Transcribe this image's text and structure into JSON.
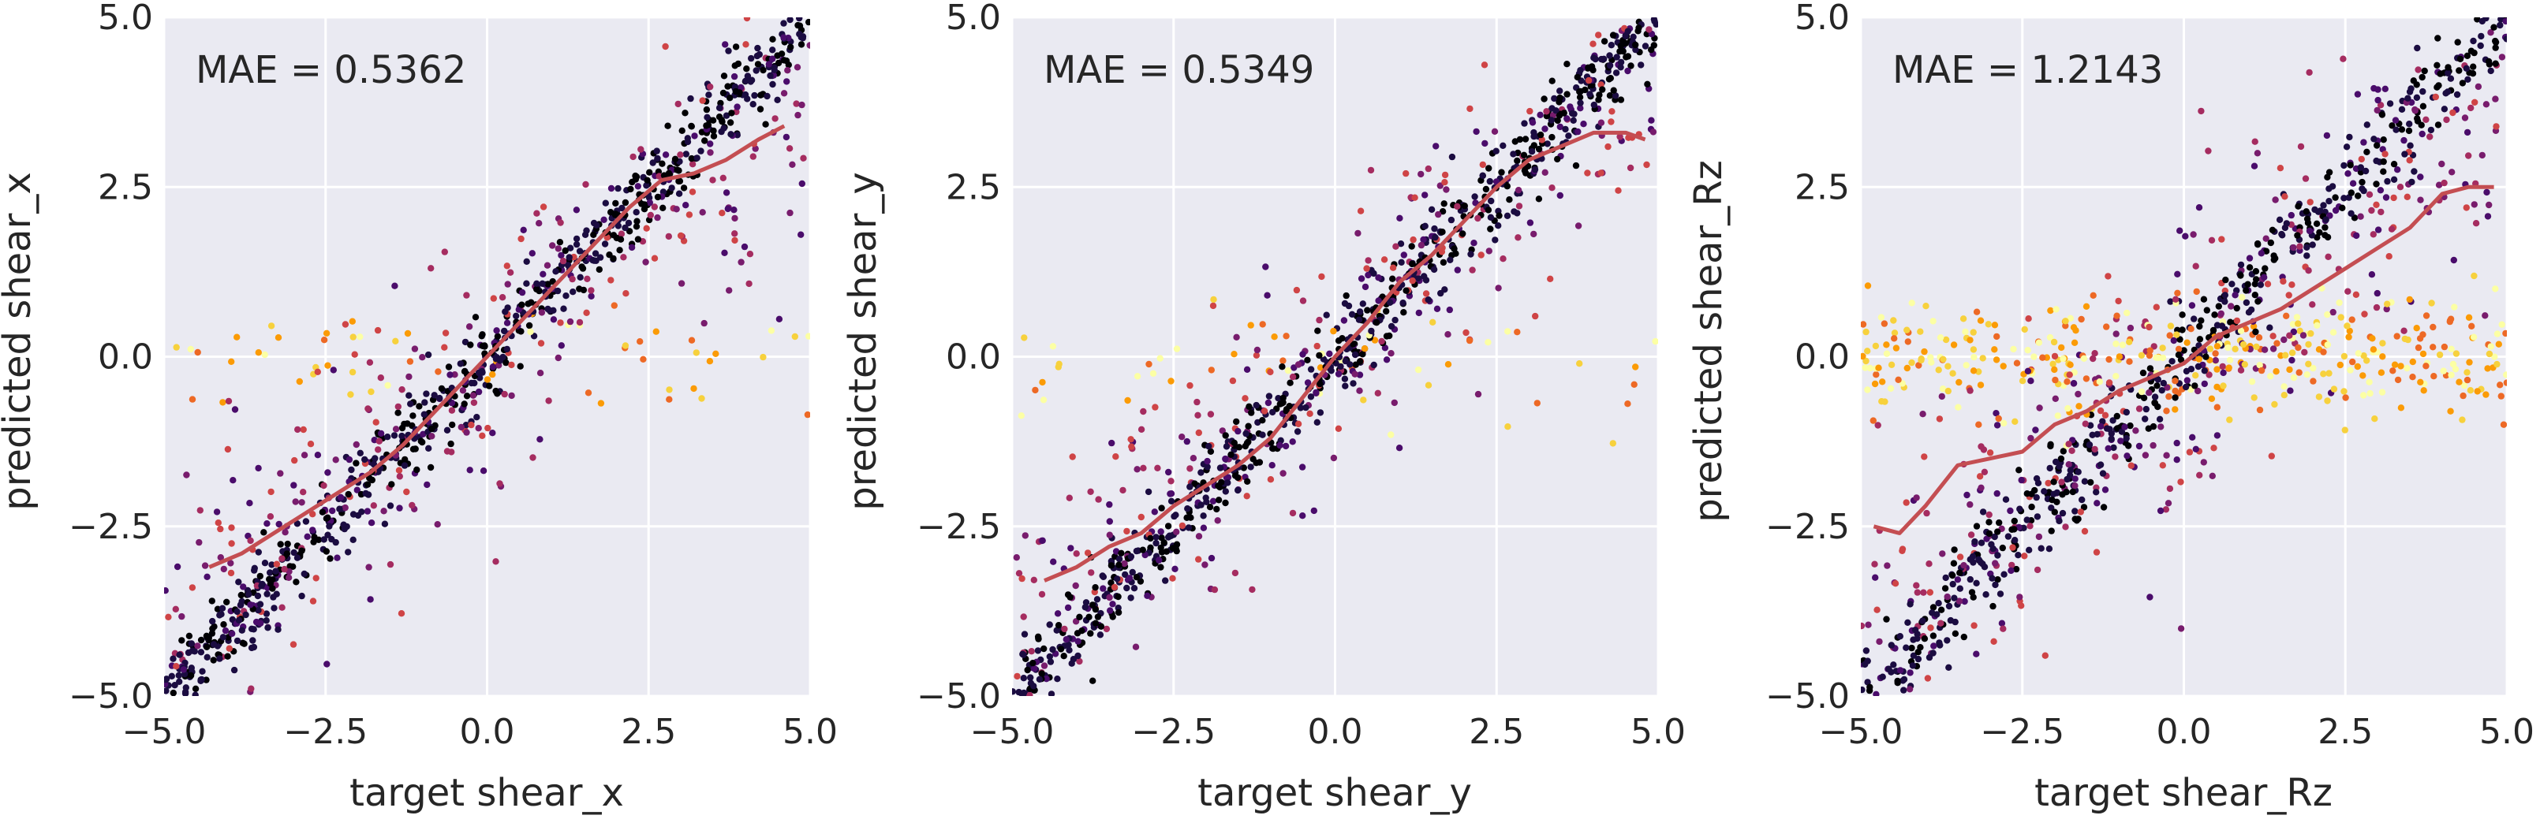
{
  "chart_data": [
    {
      "type": "scatter",
      "xlabel": "target shear_x",
      "ylabel": "predicted shear_x",
      "xlim": [
        -5.0,
        5.0
      ],
      "ylim": [
        -5.0,
        5.0
      ],
      "xticks": [
        "−5.0",
        "−2.5",
        "0.0",
        "2.5",
        "5.0"
      ],
      "yticks": [
        "−5.0",
        "−2.5",
        "0.0",
        "2.5",
        "5.0"
      ],
      "annotation": "MAE = 0.5362",
      "grid": true,
      "colormap": "inferno",
      "background": "#eaeaf2",
      "trend_color": "#c44e52",
      "scatter_model": {
        "n": 1100,
        "slope": 1.0,
        "core_noise": 0.3,
        "spread_noise": 1.0,
        "flat_fraction": 0.06,
        "seed": 11
      },
      "trend_line": {
        "x": [
          -4.3,
          -3.8,
          -3.3,
          -2.8,
          -2.3,
          -1.8,
          -1.3,
          -0.8,
          -0.3,
          0.2,
          0.7,
          1.2,
          1.7,
          2.2,
          2.7,
          3.2,
          3.7,
          4.2,
          4.6
        ],
        "y": [
          -3.1,
          -2.9,
          -2.6,
          -2.3,
          -2.0,
          -1.7,
          -1.3,
          -0.8,
          -0.3,
          0.2,
          0.7,
          1.2,
          1.7,
          2.2,
          2.6,
          2.7,
          2.9,
          3.2,
          3.4
        ]
      }
    },
    {
      "type": "scatter",
      "xlabel": "target shear_y",
      "ylabel": "predicted shear_y",
      "xlim": [
        -5.0,
        5.0
      ],
      "ylim": [
        -5.0,
        5.0
      ],
      "xticks": [
        "−5.0",
        "−2.5",
        "0.0",
        "2.5",
        "5.0"
      ],
      "yticks": [
        "−5.0",
        "−2.5",
        "0.0",
        "2.5",
        "5.0"
      ],
      "annotation": "MAE = 0.5349",
      "grid": true,
      "colormap": "inferno",
      "background": "#eaeaf2",
      "trend_color": "#c44e52",
      "scatter_model": {
        "n": 1100,
        "slope": 1.0,
        "core_noise": 0.3,
        "spread_noise": 0.9,
        "flat_fraction": 0.05,
        "seed": 23
      },
      "trend_line": {
        "x": [
          -4.5,
          -4.0,
          -3.5,
          -3.0,
          -2.5,
          -2.0,
          -1.5,
          -1.0,
          -0.5,
          0.0,
          0.5,
          1.0,
          1.5,
          2.0,
          2.5,
          3.0,
          3.5,
          4.0,
          4.5,
          4.8
        ],
        "y": [
          -3.3,
          -3.1,
          -2.8,
          -2.6,
          -2.2,
          -1.9,
          -1.6,
          -1.2,
          -0.6,
          0.0,
          0.5,
          1.1,
          1.5,
          2.0,
          2.5,
          2.9,
          3.1,
          3.3,
          3.3,
          3.2
        ]
      }
    },
    {
      "type": "scatter",
      "xlabel": "target shear_Rz",
      "ylabel": "predicted shear_Rz",
      "xlim": [
        -5.0,
        5.0
      ],
      "ylim": [
        -5.0,
        5.0
      ],
      "xticks": [
        "−5.0",
        "−2.5",
        "0.0",
        "2.5",
        "5.0"
      ],
      "yticks": [
        "−5.0",
        "−2.5",
        "0.0",
        "2.5",
        "5.0"
      ],
      "annotation": "MAE = 1.2143",
      "grid": true,
      "colormap": "inferno",
      "background": "#eaeaf2",
      "trend_color": "#c44e52",
      "scatter_model": {
        "n": 1300,
        "slope": 1.0,
        "core_noise": 0.35,
        "spread_noise": 1.2,
        "flat_fraction": 0.3,
        "seed": 37
      },
      "trend_line": {
        "x": [
          -4.8,
          -4.4,
          -4.0,
          -3.5,
          -3.0,
          -2.5,
          -2.0,
          -1.5,
          -1.0,
          -0.5,
          0.0,
          0.5,
          1.0,
          1.5,
          2.0,
          2.5,
          3.0,
          3.5,
          4.0,
          4.4,
          4.8
        ],
        "y": [
          -2.5,
          -2.6,
          -2.2,
          -1.6,
          -1.5,
          -1.4,
          -1.0,
          -0.8,
          -0.5,
          -0.3,
          -0.1,
          0.3,
          0.5,
          0.7,
          1.0,
          1.3,
          1.6,
          1.9,
          2.4,
          2.5,
          2.5
        ]
      }
    }
  ]
}
